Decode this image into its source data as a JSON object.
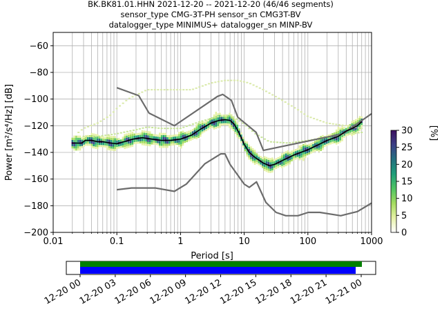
{
  "title_lines": [
    "BK.BK81.01.HHN   2021-12-20 -- 2021-12-20  (46/46 segments)",
    "sensor_type CMG-3T-PH sensor_sn CMG3T-BV",
    "datalogger_type MINIMUS+ datalogger_sn MINP-BV"
  ],
  "chart_data": {
    "type": "heatmap",
    "xlabel": "Period [s]",
    "ylabel": "Power [m²/s⁴/Hz] [dB]",
    "xscale": "log",
    "xlim": [
      0.01,
      1000
    ],
    "ylim": [
      -200,
      -50
    ],
    "grid": true,
    "xticks": [
      {
        "v": 0.01,
        "label": "0.01"
      },
      {
        "v": 0.1,
        "label": "0.1"
      },
      {
        "v": 1,
        "label": "1"
      },
      {
        "v": 10,
        "label": "10"
      },
      {
        "v": 100,
        "label": "100"
      },
      {
        "v": 1000,
        "label": "1000"
      }
    ],
    "yticks": [
      {
        "v": -200,
        "label": "−200"
      },
      {
        "v": -180,
        "label": "−180"
      },
      {
        "v": -160,
        "label": "−160"
      },
      {
        "v": -140,
        "label": "−140"
      },
      {
        "v": -120,
        "label": "−120"
      },
      {
        "v": -100,
        "label": "−100"
      },
      {
        "v": -80,
        "label": "−80"
      },
      {
        "v": -60,
        "label": "−60"
      }
    ],
    "nhnm": [
      [
        0.1,
        -91.5
      ],
      [
        0.22,
        -97.4
      ],
      [
        0.32,
        -110.5
      ],
      [
        0.8,
        -120
      ],
      [
        3.8,
        -98
      ],
      [
        4.6,
        -96.5
      ],
      [
        6.3,
        -101
      ],
      [
        7.9,
        -113.5
      ],
      [
        15.4,
        -125
      ],
      [
        20,
        -138.5
      ],
      [
        354.8,
        -126
      ],
      [
        1000,
        -111
      ]
    ],
    "nlnm": [
      [
        0.1,
        -168
      ],
      [
        0.17,
        -166.7
      ],
      [
        0.4,
        -166.7
      ],
      [
        0.8,
        -169.2
      ],
      [
        1.24,
        -163.7
      ],
      [
        2.4,
        -148.6
      ],
      [
        4.3,
        -141.1
      ],
      [
        5,
        -141.1
      ],
      [
        6,
        -149
      ],
      [
        10,
        -163.8
      ],
      [
        12,
        -166.2
      ],
      [
        15.6,
        -162.1
      ],
      [
        21.9,
        -177.5
      ],
      [
        31.6,
        -185
      ],
      [
        45,
        -187.5
      ],
      [
        70,
        -187.5
      ],
      [
        101,
        -185
      ],
      [
        154,
        -185
      ],
      [
        328,
        -187.5
      ],
      [
        600,
        -184.4
      ],
      [
        1000,
        -178
      ]
    ],
    "mean_curve": [
      [
        0.02,
        -133
      ],
      [
        0.024,
        -133
      ],
      [
        0.028,
        -133
      ],
      [
        0.032,
        -131
      ],
      [
        0.04,
        -131
      ],
      [
        0.05,
        -132
      ],
      [
        0.06,
        -132
      ],
      [
        0.08,
        -133
      ],
      [
        0.1,
        -133.5
      ],
      [
        0.13,
        -132
      ],
      [
        0.18,
        -130
      ],
      [
        0.25,
        -129
      ],
      [
        0.35,
        -130
      ],
      [
        0.5,
        -131
      ],
      [
        0.7,
        -131
      ],
      [
        1,
        -130
      ],
      [
        1.5,
        -127
      ],
      [
        2,
        -123
      ],
      [
        3,
        -118
      ],
      [
        4,
        -116
      ],
      [
        5,
        -115.5
      ],
      [
        6,
        -116
      ],
      [
        7,
        -119
      ],
      [
        8,
        -124
      ],
      [
        9,
        -129
      ],
      [
        10,
        -134
      ],
      [
        12,
        -140
      ],
      [
        15,
        -144
      ],
      [
        20,
        -148
      ],
      [
        25,
        -150
      ],
      [
        30,
        -149
      ],
      [
        40,
        -146
      ],
      [
        60,
        -142
      ],
      [
        100,
        -138
      ],
      [
        150,
        -134
      ],
      [
        200,
        -131
      ],
      [
        300,
        -128
      ],
      [
        400,
        -124
      ],
      [
        500,
        -122
      ],
      [
        600,
        -120
      ],
      [
        700,
        -117
      ]
    ],
    "noise_upper": [
      [
        0.025,
        -125
      ],
      [
        0.03,
        -122
      ],
      [
        0.05,
        -118
      ],
      [
        0.08,
        -112
      ],
      [
        0.1,
        -107
      ],
      [
        0.15,
        -100
      ],
      [
        0.2,
        -97
      ],
      [
        0.3,
        -93
      ],
      [
        0.5,
        -93
      ],
      [
        0.8,
        -93
      ],
      [
        1.5,
        -93
      ],
      [
        3,
        -88
      ],
      [
        5,
        -86
      ],
      [
        8,
        -86
      ],
      [
        12,
        -88
      ],
      [
        20,
        -93
      ],
      [
        40,
        -101
      ],
      [
        70,
        -108
      ],
      [
        100,
        -113
      ],
      [
        200,
        -118
      ],
      [
        400,
        -120
      ],
      [
        700,
        -122
      ]
    ],
    "noise_lower": [
      [
        0.03,
        -128
      ],
      [
        0.05,
        -128
      ],
      [
        0.1,
        -126
      ],
      [
        0.2,
        -123
      ],
      [
        0.3,
        -121
      ],
      [
        0.5,
        -122
      ],
      [
        1,
        -122
      ],
      [
        2,
        -117
      ],
      [
        4,
        -113
      ],
      [
        6,
        -112
      ],
      [
        9,
        -117
      ],
      [
        15,
        -126
      ],
      [
        25,
        -132
      ],
      [
        50,
        -133
      ],
      [
        100,
        -131
      ],
      [
        300,
        -127
      ],
      [
        700,
        -125
      ]
    ],
    "colorbar": {
      "label": "[%]",
      "min": 0,
      "max": 30,
      "ticks": [
        0,
        5,
        10,
        15,
        20,
        25,
        30
      ],
      "colors": [
        "#ffffff",
        "#e6f1a6",
        "#a4dc5f",
        "#4fc463",
        "#1e9e79",
        "#23707f",
        "#3b3f86",
        "#3b0f5e"
      ]
    }
  },
  "coverage": {
    "xticks": [
      "12-20 00",
      "12-20 03",
      "12-20 06",
      "12-20 09",
      "12-20 12",
      "12-20 15",
      "12-20 18",
      "12-20 21",
      "12-21 00"
    ],
    "bar_colors": {
      "top": "#008000",
      "bottom": "#0000ff"
    }
  }
}
